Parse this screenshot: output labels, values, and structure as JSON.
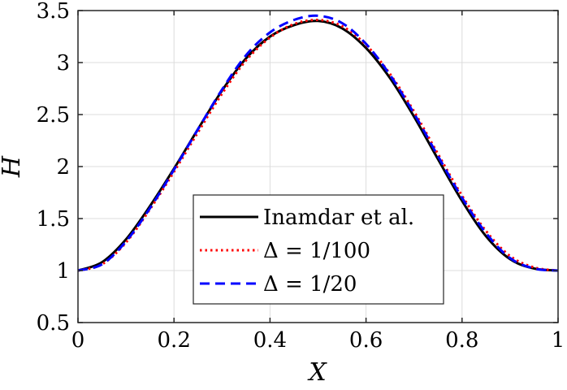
{
  "chart_data": {
    "type": "line",
    "title": "",
    "xlabel": "X",
    "ylabel": "H",
    "xlim": [
      0,
      1
    ],
    "ylim": [
      0.5,
      3.5
    ],
    "grid": true,
    "legend_position": "bottom-center",
    "x_ticks": [
      {
        "value": 0,
        "label": "0"
      },
      {
        "value": 0.2,
        "label": "0.2"
      },
      {
        "value": 0.4,
        "label": "0.4"
      },
      {
        "value": 0.6,
        "label": "0.6"
      },
      {
        "value": 0.8,
        "label": "0.8"
      },
      {
        "value": 1,
        "label": "1"
      }
    ],
    "y_ticks": [
      {
        "value": 0.5,
        "label": "0.5"
      },
      {
        "value": 1,
        "label": "1"
      },
      {
        "value": 1.5,
        "label": "1.5"
      },
      {
        "value": 2,
        "label": "2"
      },
      {
        "value": 2.5,
        "label": "2.5"
      },
      {
        "value": 3,
        "label": "3"
      },
      {
        "value": 3.5,
        "label": "3.5"
      }
    ],
    "series": [
      {
        "name": "Inamdar et al.",
        "color": "#000000",
        "style": "solid",
        "x": [
          0,
          0.05,
          0.1,
          0.15,
          0.2,
          0.25,
          0.3,
          0.35,
          0.4,
          0.45,
          0.5,
          0.55,
          0.6,
          0.65,
          0.7,
          0.75,
          0.8,
          0.85,
          0.9,
          0.95,
          1
        ],
        "y": [
          1.0,
          1.08,
          1.3,
          1.62,
          1.98,
          2.36,
          2.73,
          3.04,
          3.25,
          3.36,
          3.4,
          3.33,
          3.14,
          2.85,
          2.48,
          2.07,
          1.67,
          1.33,
          1.11,
          1.02,
          1.0
        ]
      },
      {
        "name": "Δ = 1/100",
        "color": "#ff0000",
        "style": "dotted",
        "x": [
          0,
          0.05,
          0.1,
          0.15,
          0.2,
          0.25,
          0.3,
          0.35,
          0.4,
          0.45,
          0.5,
          0.55,
          0.6,
          0.65,
          0.7,
          0.75,
          0.8,
          0.85,
          0.9,
          0.95,
          1
        ],
        "y": [
          1.0,
          1.06,
          1.27,
          1.59,
          1.95,
          2.33,
          2.7,
          3.02,
          3.24,
          3.37,
          3.41,
          3.35,
          3.17,
          2.89,
          2.53,
          2.12,
          1.72,
          1.38,
          1.14,
          1.03,
          1.0
        ]
      },
      {
        "name": "Δ = 1/20",
        "color": "#0000ff",
        "style": "dashed",
        "x": [
          0,
          0.05,
          0.1,
          0.15,
          0.2,
          0.25,
          0.3,
          0.35,
          0.4,
          0.45,
          0.5,
          0.55,
          0.6,
          0.65,
          0.7,
          0.75,
          0.8,
          0.85,
          0.9,
          0.95,
          1
        ],
        "y": [
          1.0,
          1.06,
          1.28,
          1.6,
          1.97,
          2.36,
          2.74,
          3.07,
          3.29,
          3.41,
          3.45,
          3.38,
          3.18,
          2.88,
          2.51,
          2.1,
          1.7,
          1.36,
          1.12,
          1.02,
          1.0
        ]
      }
    ],
    "legend": [
      {
        "label": "Inamdar et al.",
        "color": "#000000",
        "style": "solid"
      },
      {
        "label": "Δ = 1/100",
        "color": "#ff0000",
        "style": "dotted"
      },
      {
        "label": "Δ = 1/20",
        "color": "#0000ff",
        "style": "dashed"
      }
    ]
  }
}
